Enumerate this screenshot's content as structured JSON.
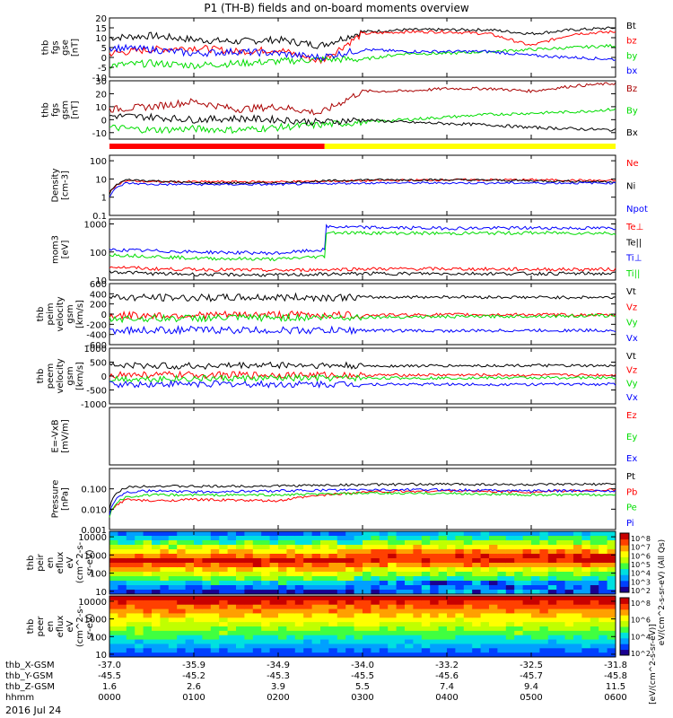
{
  "chart_data": {
    "title": "P1 (TH-B) fields and on-board moments overview",
    "date": "2016 Jul 24",
    "type": "line",
    "time_axis": {
      "label": "hhmm",
      "ticks": [
        "0000",
        "0100",
        "0200",
        "0300",
        "0400",
        "0500",
        "0600"
      ],
      "range_hours": [
        0,
        6
      ]
    },
    "orbit_rows": [
      {
        "label": "thb_X-GSM",
        "values": [
          "-37.0",
          "-35.9",
          "-34.9",
          "-34.0",
          "-33.2",
          "-32.5",
          "-31.8"
        ]
      },
      {
        "label": "thb_Y-GSM",
        "values": [
          "-45.5",
          "-45.2",
          "-45.3",
          "-45.5",
          "-45.6",
          "-45.7",
          "-45.8"
        ]
      },
      {
        "label": "thb_Z-GSM",
        "values": [
          "1.6",
          "2.6",
          "3.9",
          "5.5",
          "7.4",
          "9.4",
          "11.5"
        ]
      }
    ],
    "panels": [
      {
        "id": "fgs_gse",
        "ylabel": [
          "thb",
          "fgs",
          "gse",
          "[nT]"
        ],
        "ylim": [
          -10,
          20
        ],
        "ticks": [
          "20",
          "15",
          "10",
          "5",
          "0",
          "-5",
          "-10"
        ],
        "legend": [
          {
            "name": "Bt",
            "color": "#000000"
          },
          {
            "name": "bz",
            "color": "#ff0000"
          },
          {
            "name": "by",
            "color": "#00dd00"
          },
          {
            "name": "bx",
            "color": "#0000ff"
          }
        ],
        "series": [
          {
            "name": "Bt",
            "x": [
              0,
              0.5,
              1,
              1.5,
              2,
              2.5,
              3,
              3.5,
              4,
              4.5,
              5,
              5.5,
              6
            ],
            "y": [
              10,
              11,
              9,
              8,
              9,
              6,
              13,
              14,
              14,
              14,
              12,
              14,
              15
            ]
          },
          {
            "name": "bz",
            "x": [
              0,
              0.5,
              1,
              1.5,
              2,
              2.5,
              3,
              3.5,
              4,
              4.5,
              5,
              5.5,
              6
            ],
            "y": [
              2,
              4,
              5,
              3,
              4,
              -2,
              12,
              13,
              13,
              12,
              6,
              12,
              13
            ]
          },
          {
            "name": "by",
            "x": [
              0,
              0.5,
              1,
              1.5,
              2,
              2.5,
              3,
              3.5,
              4,
              4.5,
              5,
              5.5,
              6
            ],
            "y": [
              -4,
              -3,
              -4,
              -3,
              -2,
              -1,
              -1,
              2,
              2,
              3,
              4,
              5,
              6
            ]
          },
          {
            "name": "bx",
            "x": [
              0,
              0.5,
              1,
              1.5,
              2,
              2.5,
              3,
              3.5,
              4,
              4.5,
              5,
              5.5,
              6
            ],
            "y": [
              5,
              4,
              2,
              3,
              2,
              0,
              4,
              3,
              3,
              3,
              1,
              0,
              -1
            ]
          }
        ]
      },
      {
        "id": "fgs_gsm",
        "ylabel": [
          "thb",
          "fgs",
          "gsm",
          "[nT]"
        ],
        "ylim": [
          -15,
          30
        ],
        "ticks": [
          "30",
          "20",
          "10",
          "0",
          "-10"
        ],
        "legend": [
          {
            "name": "Bz",
            "color": "#aa0000"
          },
          {
            "name": "By",
            "color": "#00dd00"
          },
          {
            "name": "Bx",
            "color": "#000000"
          }
        ],
        "series": [
          {
            "name": "Bz",
            "x": [
              0,
              0.5,
              1,
              1.5,
              2,
              2.5,
              3,
              3.5,
              4,
              4.5,
              5,
              5.5,
              6
            ],
            "y": [
              8,
              10,
              14,
              8,
              10,
              5,
              22,
              22,
              24,
              24,
              22,
              26,
              28
            ]
          },
          {
            "name": "By",
            "x": [
              0,
              0.5,
              1,
              1.5,
              2,
              2.5,
              3,
              3.5,
              4,
              4.5,
              5,
              5.5,
              6
            ],
            "y": [
              -6,
              -8,
              -7,
              -8,
              -6,
              -4,
              -2,
              0,
              2,
              4,
              5,
              6,
              8
            ]
          },
          {
            "name": "Bx",
            "x": [
              0,
              0.5,
              1,
              1.5,
              2,
              2.5,
              3,
              3.5,
              4,
              4.5,
              5,
              5.5,
              6
            ],
            "y": [
              3,
              2,
              0,
              1,
              0,
              -2,
              0,
              -2,
              -3,
              -4,
              -6,
              -7,
              -8
            ]
          }
        ]
      },
      {
        "id": "density",
        "ylabel": [
          "Density",
          "[cm-3]"
        ],
        "log": true,
        "ylim": [
          0.1,
          200
        ],
        "ticks": [
          "100",
          "10",
          "1",
          "0.1"
        ],
        "legend": [
          {
            "name": "Ne",
            "color": "#ff0000"
          },
          {
            "name": "Ni",
            "color": "#000000"
          },
          {
            "name": "Npot",
            "color": "#0000ff"
          }
        ],
        "series": [
          {
            "name": "Ne",
            "x": [
              0,
              0.2,
              0.5,
              1,
              2,
              3,
              4,
              5,
              6
            ],
            "y": [
              2,
              8,
              7,
              7,
              7,
              8,
              9,
              9,
              8
            ]
          },
          {
            "name": "Ni",
            "x": [
              0,
              0.2,
              0.5,
              1,
              2,
              3,
              4,
              5,
              6
            ],
            "y": [
              1.5,
              9,
              8,
              6,
              6,
              9,
              9,
              8,
              7
            ]
          },
          {
            "name": "Npot",
            "x": [
              0,
              0.2,
              0.5,
              1,
              2,
              3,
              4,
              5,
              6
            ],
            "y": [
              1,
              6,
              5,
              5,
              5,
              6,
              6,
              6,
              6
            ]
          }
        ]
      },
      {
        "id": "temperature",
        "ylabel": [
          "mom3",
          "[eV]"
        ],
        "log": true,
        "ylim": [
          10,
          1500
        ],
        "ticks": [
          "1000",
          "100",
          "10"
        ],
        "legend": [
          {
            "name": "Te⊥",
            "color": "#ff0000"
          },
          {
            "name": "Te||",
            "color": "#000000"
          },
          {
            "name": "Ti⊥",
            "color": "#0000ff"
          },
          {
            "name": "Ti||",
            "color": "#00dd00"
          }
        ],
        "series": [
          {
            "name": "Te⊥",
            "x": [
              0,
              0.5,
              1,
              2,
              3,
              4,
              5,
              6
            ],
            "y": [
              30,
              25,
              24,
              22,
              25,
              25,
              24,
              24
            ]
          },
          {
            "name": "Te||",
            "x": [
              0,
              0.5,
              1,
              2,
              3,
              4,
              5,
              6
            ],
            "y": [
              20,
              17,
              16,
              15,
              17,
              17,
              17,
              17
            ]
          },
          {
            "name": "Ti⊥",
            "x": [
              0,
              0.5,
              1,
              2,
              2.55,
              2.56,
              3,
              4,
              5,
              6
            ],
            "y": [
              120,
              110,
              100,
              90,
              120,
              800,
              750,
              700,
              720,
              700
            ]
          },
          {
            "name": "Ti||",
            "x": [
              0,
              0.5,
              1,
              2,
              2.55,
              2.56,
              3,
              4,
              5,
              6
            ],
            "y": [
              80,
              70,
              60,
              55,
              70,
              500,
              480,
              460,
              480,
              470
            ]
          }
        ]
      },
      {
        "id": "peim_velocity",
        "ylabel": [
          "thb",
          "peim",
          "velocity",
          "gsm",
          "[km/s]"
        ],
        "ylim": [
          -600,
          600
        ],
        "ticks": [
          "600",
          "400",
          "200",
          "0",
          "-200",
          "-400",
          "-600"
        ],
        "legend": [
          {
            "name": "Vt",
            "color": "#000000"
          },
          {
            "name": "Vz",
            "color": "#ff0000"
          },
          {
            "name": "Vy",
            "color": "#00dd00"
          },
          {
            "name": "Vx",
            "color": "#0000ff"
          }
        ],
        "series": [
          {
            "name": "Vt",
            "x": [
              0,
              1,
              2,
              3,
              4,
              5,
              6
            ],
            "y": [
              330,
              320,
              330,
              330,
              340,
              330,
              330
            ]
          },
          {
            "name": "Vz",
            "x": [
              0,
              1,
              2,
              3,
              4,
              5,
              6
            ],
            "y": [
              -30,
              -20,
              -10,
              -20,
              -10,
              -10,
              -20
            ]
          },
          {
            "name": "Vy",
            "x": [
              0,
              1,
              2,
              3,
              4,
              5,
              6
            ],
            "y": [
              -90,
              -80,
              -70,
              -60,
              -50,
              -40,
              -30
            ]
          },
          {
            "name": "Vx",
            "x": [
              0,
              1,
              2,
              3,
              4,
              5,
              6
            ],
            "y": [
              -320,
              -310,
              -320,
              -320,
              -330,
              -320,
              -320
            ]
          }
        ]
      },
      {
        "id": "peem_velocity",
        "ylabel": [
          "thb",
          "peem",
          "velocity",
          "gsm",
          "[km/s]"
        ],
        "ylim": [
          -1000,
          1000
        ],
        "ticks": [
          "1000",
          "500",
          "0",
          "-500",
          "-1000"
        ],
        "legend": [
          {
            "name": "Vt",
            "color": "#000000"
          },
          {
            "name": "Vz",
            "color": "#ff0000"
          },
          {
            "name": "Vy",
            "color": "#00dd00"
          },
          {
            "name": "Vx",
            "color": "#0000ff"
          }
        ],
        "series": [
          {
            "name": "Vt",
            "x": [
              0,
              1,
              2,
              3,
              4,
              5,
              6
            ],
            "y": [
              380,
              360,
              400,
              360,
              370,
              380,
              360
            ]
          },
          {
            "name": "Vz",
            "x": [
              0,
              1,
              2,
              3,
              4,
              5,
              6
            ],
            "y": [
              50,
              40,
              40,
              30,
              40,
              30,
              40
            ]
          },
          {
            "name": "Vy",
            "x": [
              0,
              1,
              2,
              3,
              4,
              5,
              6
            ],
            "y": [
              -100,
              -90,
              -80,
              -70,
              -70,
              -60,
              -60
            ]
          },
          {
            "name": "Vx",
            "x": [
              0,
              1,
              2,
              3,
              4,
              5,
              6
            ],
            "y": [
              -300,
              -280,
              -300,
              -290,
              -300,
              -300,
              -290
            ]
          }
        ]
      },
      {
        "id": "efield",
        "ylabel": [
          "E=-VxB",
          "[mV/m]"
        ],
        "ylim": [
          -1,
          1
        ],
        "ticks": [],
        "legend": [
          {
            "name": "Ez",
            "color": "#ff0000"
          },
          {
            "name": "Ey",
            "color": "#00dd00"
          },
          {
            "name": "Ex",
            "color": "#0000ff"
          }
        ],
        "series": []
      },
      {
        "id": "pressure",
        "ylabel": [
          "Pressure",
          "[nPa]"
        ],
        "log": true,
        "ylim": [
          0.001,
          1
        ],
        "ticks": [
          "0.100",
          "0.010",
          "0.001"
        ],
        "legend": [
          {
            "name": "Pt",
            "color": "#000000"
          },
          {
            "name": "Pb",
            "color": "#ff0000"
          },
          {
            "name": "Pe",
            "color": "#00dd00"
          },
          {
            "name": "Pi",
            "color": "#0000ff"
          }
        ],
        "series": [
          {
            "name": "Pt",
            "x": [
              0,
              0.2,
              0.5,
              1,
              2,
              3,
              4,
              5,
              6
            ],
            "y": [
              0.01,
              0.12,
              0.14,
              0.13,
              0.14,
              0.16,
              0.17,
              0.16,
              0.17
            ]
          },
          {
            "name": "Pb",
            "x": [
              0,
              0.2,
              0.5,
              1,
              2,
              3,
              4,
              5,
              6
            ],
            "y": [
              0.005,
              0.03,
              0.025,
              0.03,
              0.025,
              0.07,
              0.08,
              0.07,
              0.09
            ]
          },
          {
            "name": "Pe",
            "x": [
              0,
              0.2,
              0.5,
              1,
              2,
              3,
              4,
              5,
              6
            ],
            "y": [
              0.004,
              0.04,
              0.05,
              0.05,
              0.05,
              0.06,
              0.06,
              0.05,
              0.05
            ]
          },
          {
            "name": "Pi",
            "x": [
              0,
              0.2,
              0.5,
              1,
              2,
              3,
              4,
              5,
              6
            ],
            "y": [
              0.006,
              0.07,
              0.08,
              0.07,
              0.08,
              0.09,
              0.09,
              0.08,
              0.08
            ]
          }
        ]
      }
    ],
    "spectrograms": [
      {
        "id": "peir_eflux",
        "ylabel": [
          "thb",
          "peir",
          "en",
          "eflux",
          "eV",
          "(cm^2-s-",
          "sr-eV)"
        ],
        "log": true,
        "ylim": [
          7,
          20000
        ],
        "ticks": [
          "10000",
          "1000",
          "100",
          "10"
        ]
      },
      {
        "id": "peer_eflux",
        "ylabel": [
          "thb",
          "peer",
          "en",
          "eflux",
          "eV",
          "(cm^2-s-",
          "sr-eV)"
        ],
        "log": true,
        "ylim": [
          7,
          20000
        ],
        "ticks": [
          "10000",
          "1000",
          "100",
          "10"
        ]
      }
    ],
    "colorbars": [
      {
        "ticks": [
          "10^8",
          "10^7",
          "10^6",
          "10^5",
          "10^4",
          "10^3",
          "10^2"
        ],
        "label": "eV/(cm^2-s-sr-eV) (All Qs)"
      },
      {
        "ticks": [
          "10^8",
          "10^6",
          "10^4",
          "10^2"
        ],
        "label": "[eV/(cm^2-s-sr-eV)]"
      }
    ],
    "status_bar": {
      "colors": [
        "#ff0000",
        "#ffff00"
      ],
      "switch_hour": 2.55
    }
  }
}
